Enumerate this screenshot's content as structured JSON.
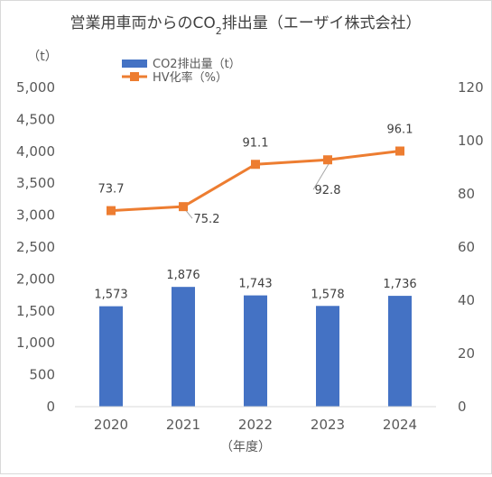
{
  "chart_data": {
    "type": "bar+line",
    "title": "営業用車両からのCO",
    "title_sub": "2",
    "title_rest": "排出量（エーザイ株式会社）",
    "y_unit_label": "（t）",
    "x_label": "（年度）",
    "categories": [
      "2020",
      "2021",
      "2022",
      "2023",
      "2024"
    ],
    "left_axis": {
      "min": 0,
      "max": 5000,
      "step": 500,
      "tick_labels": [
        "0",
        "500",
        "1,000",
        "1,500",
        "2,000",
        "2,500",
        "3,000",
        "3,500",
        "4,000",
        "4,500",
        "5,000"
      ]
    },
    "right_axis": {
      "min": 0,
      "max": 120,
      "step": 20,
      "tick_labels": [
        "0",
        "20",
        "40",
        "60",
        "80",
        "100",
        "120"
      ]
    },
    "series": [
      {
        "name": "CO2排出量（t）",
        "type": "bar",
        "axis": "left",
        "color": "#4472c4",
        "values": [
          1573,
          1876,
          1743,
          1578,
          1736
        ],
        "labels": [
          "1,573",
          "1,876",
          "1,743",
          "1,578",
          "1,736"
        ]
      },
      {
        "name": "HV化率（%）",
        "type": "line",
        "axis": "right",
        "color": "#ed7d31",
        "values": [
          73.7,
          75.2,
          91.1,
          92.8,
          96.1
        ],
        "labels": [
          "73.7",
          "75.2",
          "91.1",
          "92.8",
          "96.1"
        ]
      }
    ],
    "legend_position": "top-left",
    "grid": false
  }
}
